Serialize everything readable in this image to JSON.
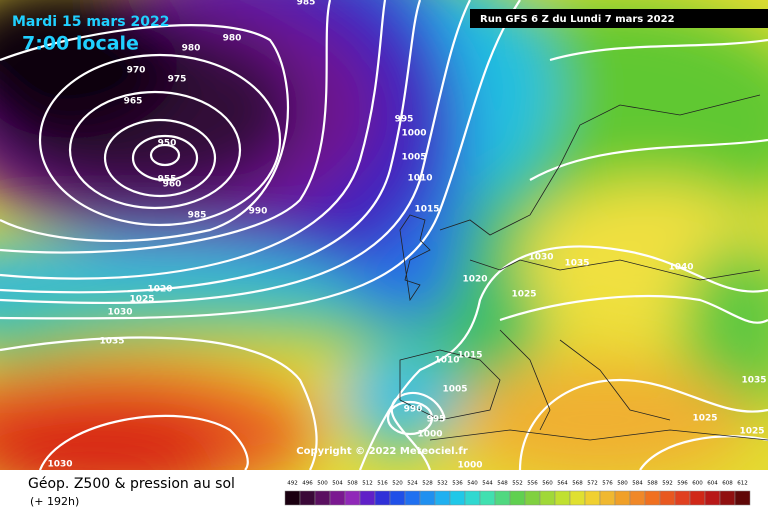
{
  "header": {
    "date": "Mardi 15 mars 2022",
    "time": "7:00 locale",
    "run": "Run GFS 6 Z du Lundi 7 mars 2022"
  },
  "isobar_labels": [
    985,
    980,
    980,
    970,
    975,
    965,
    950,
    955,
    960,
    985,
    990,
    995,
    1000,
    1005,
    1010,
    1015,
    1020,
    1020,
    1025,
    1030,
    1035,
    1030,
    1035,
    1040,
    1025,
    1015,
    1010,
    1005,
    990,
    995,
    1000,
    1000,
    1035,
    1025,
    1025,
    1030
  ],
  "footer": {
    "title": "Géop. Z500 & pression au sol",
    "lead": "(+ 192h)",
    "copyright": "Copyright © 2022 Meteociel.fr"
  },
  "scale": {
    "ticks": [
      492,
      496,
      500,
      504,
      508,
      512,
      516,
      520,
      524,
      528,
      532,
      536,
      540,
      544,
      548,
      552,
      556,
      560,
      564,
      568,
      572,
      576,
      580,
      584,
      588,
      592,
      596,
      600,
      604,
      608,
      612
    ]
  }
}
